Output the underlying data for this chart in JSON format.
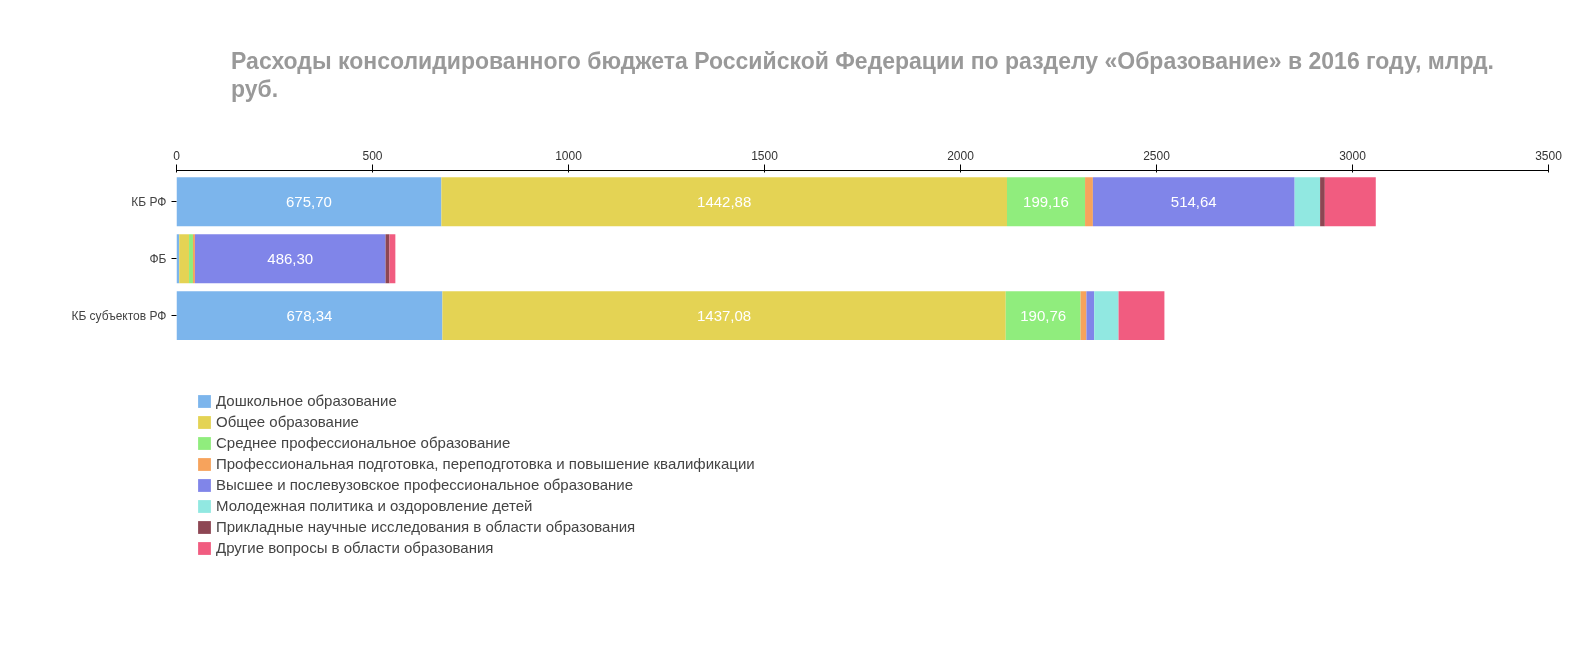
{
  "chart_data": {
    "type": "bar",
    "orientation": "horizontal",
    "stacked": true,
    "title": "Расходы консолидированного бюджета Российской Федерации по разделу «Образование» в 2016 году, млрд. руб.",
    "categories": [
      "КБ РФ",
      "ФБ",
      "КБ субъектов РФ"
    ],
    "xlim": [
      0,
      3500
    ],
    "xticks": [
      0,
      500,
      1000,
      1500,
      2000,
      2500,
      3000,
      3500
    ],
    "grid": false,
    "legend": "bottom",
    "series": [
      {
        "name": "Дошкольное образование",
        "color": "#7cb5ec",
        "values": [
          675.7,
          7,
          678.34
        ],
        "value_labels": [
          "675,70",
          null,
          "678,34"
        ]
      },
      {
        "name": "Общее образование",
        "color": "#e4d354",
        "values": [
          1442.88,
          25,
          1437.08
        ],
        "value_labels": [
          "1442,88",
          null,
          "1437,08"
        ]
      },
      {
        "name": "Среднее профессиональное образование",
        "color": "#90ed7d",
        "values": [
          199.16,
          10,
          190.76
        ],
        "value_labels": [
          "199,16",
          null,
          "190,76"
        ]
      },
      {
        "name": "Профессиональная подготовка, переподготовка и повышение квалификации",
        "color": "#f7a35c",
        "values": [
          20,
          5,
          15
        ]
      },
      {
        "name": "Высшее и послевузовское профессиональное образование",
        "color": "#8085e9",
        "values": [
          514.64,
          486.3,
          20
        ],
        "value_labels": [
          "514,64",
          "486,30",
          null
        ]
      },
      {
        "name": "Молодежная политика и оздоровление детей",
        "color": "#91e8e1",
        "values": [
          65,
          0,
          62
        ]
      },
      {
        "name": "Прикладные научные исследования в области образования",
        "color": "#8d4653",
        "values": [
          12,
          10,
          0
        ]
      },
      {
        "name": "Другие вопросы в области образования",
        "color": "#f15c80",
        "values": [
          130,
          15,
          117
        ]
      }
    ]
  }
}
